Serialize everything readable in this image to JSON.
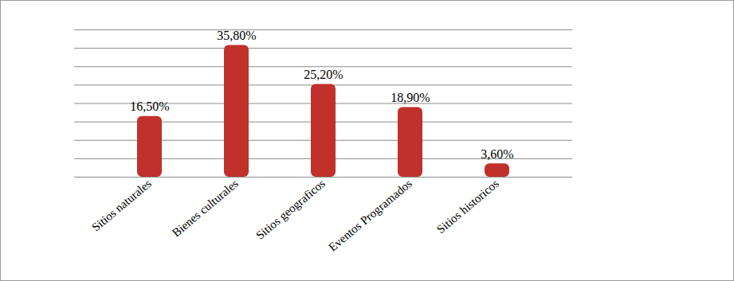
{
  "chart_data": {
    "type": "bar",
    "categories": [
      "Sitios naturales",
      "Bienes culturales",
      "Sitios geograficos",
      "Eventos Programados",
      "Sitios historicos"
    ],
    "values": [
      16.5,
      35.8,
      25.2,
      18.9,
      3.6
    ],
    "value_labels": [
      "16,50%",
      "35,80%",
      "25,20%",
      "18,90%",
      "3,60%"
    ],
    "color": "#c0312b",
    "ylim": [
      0,
      40
    ],
    "yticks": [
      0,
      5,
      10,
      15,
      20,
      25,
      30,
      35,
      40
    ],
    "grid": true,
    "data_labels": true,
    "tick_labels": "x"
  }
}
